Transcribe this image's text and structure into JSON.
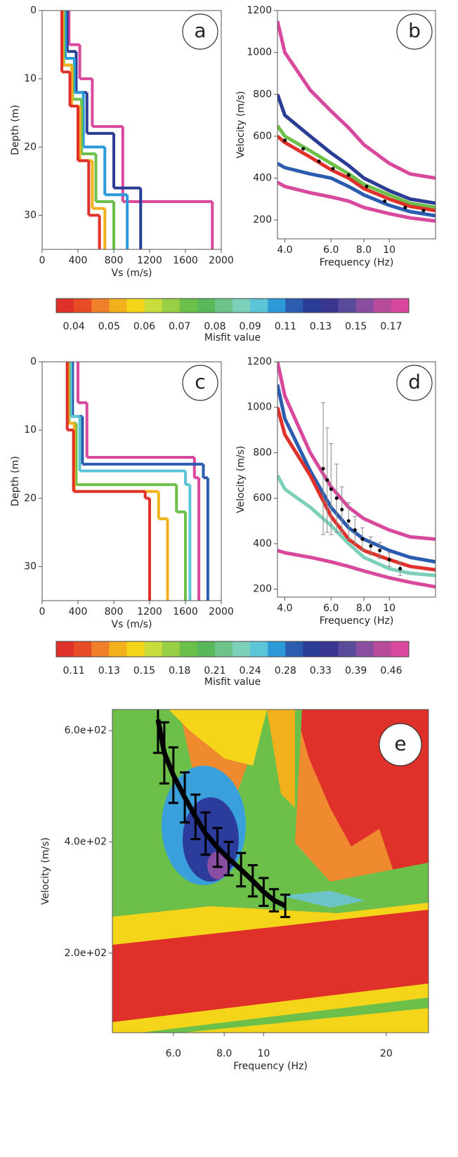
{
  "chart_data": [
    {
      "type": "step",
      "label": "a",
      "x_label": "Vs (m/s)",
      "y_label": "Depth (m)",
      "y_inverted": true,
      "xlim": [
        0,
        2000
      ],
      "xticks": [
        0,
        400,
        800,
        1200,
        1600,
        2000
      ],
      "ylim": [
        0,
        35
      ],
      "yticks": [
        0,
        10,
        20,
        30
      ],
      "series": [
        {
          "color": "#d8489c",
          "vs": [
            300,
            420,
            560,
            900,
            1900
          ],
          "depth": [
            5,
            10,
            17,
            28,
            35
          ]
        },
        {
          "color": "#2a3c94",
          "vs": [
            280,
            380,
            500,
            800,
            1100
          ],
          "depth": [
            6,
            12,
            18,
            26,
            35
          ]
        },
        {
          "color": "#2c9ad8",
          "vs": [
            260,
            360,
            460,
            700,
            950
          ],
          "depth": [
            7,
            12,
            20,
            27,
            35
          ]
        },
        {
          "color": "#6cc04a",
          "vs": [
            240,
            340,
            440,
            600,
            800
          ],
          "depth": [
            8,
            13,
            21,
            28,
            35
          ]
        },
        {
          "color": "#f2b01c",
          "vs": [
            230,
            330,
            420,
            560,
            700
          ],
          "depth": [
            8,
            14,
            22,
            29,
            35
          ]
        },
        {
          "color": "#e0302a",
          "vs": [
            220,
            310,
            400,
            520,
            640
          ],
          "depth": [
            9,
            14,
            22,
            30,
            35
          ]
        }
      ]
    },
    {
      "type": "line",
      "label": "b",
      "x_label": "Frequency (Hz)",
      "y_label": "Velocity (m/s)",
      "xscale": "log",
      "xlim": [
        3.75,
        15
      ],
      "xticks": [
        {
          "value": 4,
          "label": "4.0"
        },
        {
          "value": 6,
          "label": "6.0"
        },
        {
          "value": 8,
          "label": "8.0"
        },
        10
      ],
      "ylim": [
        110,
        1200
      ],
      "yticks": [
        200,
        400,
        600,
        800,
        1000,
        1200
      ],
      "x": [
        3.75,
        4,
        5,
        6,
        7,
        8,
        10,
        12,
        15
      ],
      "series": [
        {
          "color": "#d8489c",
          "values": [
            1150,
            1000,
            820,
            720,
            640,
            560,
            470,
            420,
            400
          ]
        },
        {
          "color": "#d8489c",
          "values": [
            380,
            360,
            330,
            310,
            290,
            260,
            230,
            210,
            195
          ]
        },
        {
          "color": "#2a3c94",
          "values": [
            800,
            700,
            600,
            520,
            460,
            400,
            340,
            300,
            280
          ]
        },
        {
          "color": "#2c5cb0",
          "values": [
            470,
            450,
            420,
            400,
            360,
            320,
            270,
            240,
            220
          ]
        },
        {
          "color": "#6cc04a",
          "values": [
            650,
            600,
            530,
            470,
            420,
            370,
            320,
            280,
            260
          ]
        },
        {
          "color": "#e0302a",
          "values": [
            600,
            570,
            500,
            440,
            400,
            350,
            300,
            265,
            245
          ]
        }
      ],
      "observed": {
        "color": "#000000",
        "x": [
          4,
          4.7,
          5.4,
          6.1,
          7,
          8.2,
          9.6,
          11.5,
          13.5
        ],
        "values": [
          580,
          540,
          480,
          445,
          415,
          360,
          290,
          260,
          245
        ]
      }
    },
    {
      "type": "colorbar",
      "title": "Misfit value",
      "colors": [
        "#e0302a",
        "#e84c24",
        "#ef7f2a",
        "#f2b01c",
        "#f5d51a",
        "#c8dc3c",
        "#98cf44",
        "#6cc04a",
        "#58b85a",
        "#6cc48a",
        "#7ccfb8",
        "#5cc6d8",
        "#2c9ad8",
        "#2c5cb0",
        "#2a3c94",
        "#3a3690",
        "#5a4a9c",
        "#8a4ea0",
        "#b84c9c",
        "#d8489c"
      ],
      "ticks": [
        0.04,
        0.05,
        0.06,
        0.07,
        0.08,
        0.09,
        0.11,
        0.13,
        0.15,
        0.17
      ]
    },
    {
      "type": "step",
      "label": "c",
      "x_label": "Vs (m/s)",
      "y_label": "Depth (m)",
      "y_inverted": true,
      "xlim": [
        0,
        2000
      ],
      "xticks": [
        0,
        400,
        800,
        1200,
        1600,
        2000
      ],
      "ylim": [
        0,
        35
      ],
      "yticks": [
        0,
        10,
        20,
        30
      ],
      "series": [
        {
          "color": "#d8489c",
          "vs": [
            400,
            500,
            1700,
            1750
          ],
          "depth": [
            6,
            14,
            17,
            35
          ]
        },
        {
          "color": "#2c5cb0",
          "vs": [
            340,
            450,
            1800,
            1850
          ],
          "depth": [
            8,
            15,
            17,
            35
          ]
        },
        {
          "color": "#5cc6d8",
          "vs": [
            320,
            420,
            1600,
            1650
          ],
          "depth": [
            8,
            16,
            18,
            35
          ]
        },
        {
          "color": "#6cc04a",
          "vs": [
            300,
            380,
            1500,
            1600
          ],
          "depth": [
            9,
            18,
            22,
            35
          ]
        },
        {
          "color": "#f2b01c",
          "vs": [
            290,
            360,
            1300,
            1400
          ],
          "depth": [
            9,
            19,
            23,
            35
          ]
        },
        {
          "color": "#e0302a",
          "vs": [
            280,
            350,
            1150,
            1200
          ],
          "depth": [
            10,
            19,
            20,
            35
          ]
        }
      ]
    },
    {
      "type": "line",
      "label": "d",
      "x_label": "Frequency (Hz)",
      "y_label": "Velocity (m/s)",
      "xscale": "log",
      "xlim": [
        3.75,
        15
      ],
      "xticks": [
        {
          "value": 4,
          "label": "4.0"
        },
        {
          "value": 6,
          "label": "6.0"
        },
        {
          "value": 8,
          "label": "8.0"
        },
        10
      ],
      "ylim": [
        165,
        1200
      ],
      "yticks": [
        200,
        400,
        600,
        800,
        1000,
        1200
      ],
      "x": [
        3.75,
        4,
        5,
        6,
        7,
        8,
        10,
        12,
        15
      ],
      "series": [
        {
          "color": "#d8489c",
          "values": [
            1200,
            1050,
            800,
            650,
            560,
            510,
            460,
            430,
            420
          ]
        },
        {
          "color": "#d8489c",
          "values": [
            370,
            360,
            340,
            320,
            300,
            280,
            250,
            230,
            210
          ]
        },
        {
          "color": "#2c5cb0",
          "values": [
            1100,
            950,
            720,
            560,
            470,
            420,
            370,
            340,
            320
          ]
        },
        {
          "color": "#7ccfb8",
          "values": [
            700,
            640,
            560,
            480,
            400,
            340,
            290,
            270,
            260
          ]
        },
        {
          "color": "#e0302a",
          "values": [
            1000,
            880,
            700,
            520,
            420,
            370,
            330,
            300,
            285
          ]
        }
      ],
      "observed": {
        "color": "#000000",
        "x": [
          5.6,
          5.8,
          6.0,
          6.3,
          6.6,
          7.0,
          7.4,
          7.9,
          8.5,
          9.2,
          10,
          11
        ],
        "values": [
          730,
          680,
          640,
          600,
          550,
          500,
          460,
          420,
          390,
          370,
          330,
          290
        ],
        "errors": [
          290,
          230,
          200,
          150,
          100,
          80,
          60,
          50,
          40,
          35,
          30,
          30
        ]
      }
    },
    {
      "type": "colorbar",
      "title": "Misfit value",
      "colors": [
        "#e0302a",
        "#e84c24",
        "#ef7f2a",
        "#f2b01c",
        "#f5d51a",
        "#c8dc3c",
        "#98cf44",
        "#6cc04a",
        "#58b85a",
        "#6cc48a",
        "#7ccfb8",
        "#5cc6d8",
        "#2c9ad8",
        "#2c5cb0",
        "#2a3c94",
        "#3a3690",
        "#5a4a9c",
        "#8a4ea0",
        "#b84c9c",
        "#d8489c"
      ],
      "ticks": [
        0.11,
        0.13,
        0.15,
        0.18,
        0.21,
        0.24,
        0.28,
        0.33,
        0.39,
        0.46
      ]
    },
    {
      "type": "errorbar",
      "label": "e",
      "x_label": "Frequency (Hz)",
      "y_label": "Velocity (m/s)",
      "xscale": "log",
      "xlim": [
        4.25,
        25.4
      ],
      "xticks": [
        {
          "value": 6,
          "label": "6.0"
        },
        {
          "value": 8,
          "label": "8.0"
        },
        10,
        20
      ],
      "ylim": [
        57,
        638
      ],
      "yticks": [
        {
          "value": 200,
          "label": "2.0e+02"
        },
        {
          "value": 400,
          "label": "4.0e+02"
        },
        {
          "value": 600,
          "label": "6.0e+02"
        }
      ],
      "observed": {
        "color": "#000000",
        "x": [
          5.5,
          5.7,
          6,
          6.4,
          6.8,
          7.2,
          7.7,
          8.2,
          8.8,
          9.4,
          10,
          10.6,
          11.3
        ],
        "values": [
          620,
          560,
          520,
          480,
          445,
          415,
          390,
          370,
          350,
          330,
          310,
          295,
          285
        ],
        "errors": [
          60,
          55,
          50,
          45,
          40,
          38,
          35,
          30,
          30,
          28,
          25,
          20,
          20
        ]
      }
    }
  ]
}
